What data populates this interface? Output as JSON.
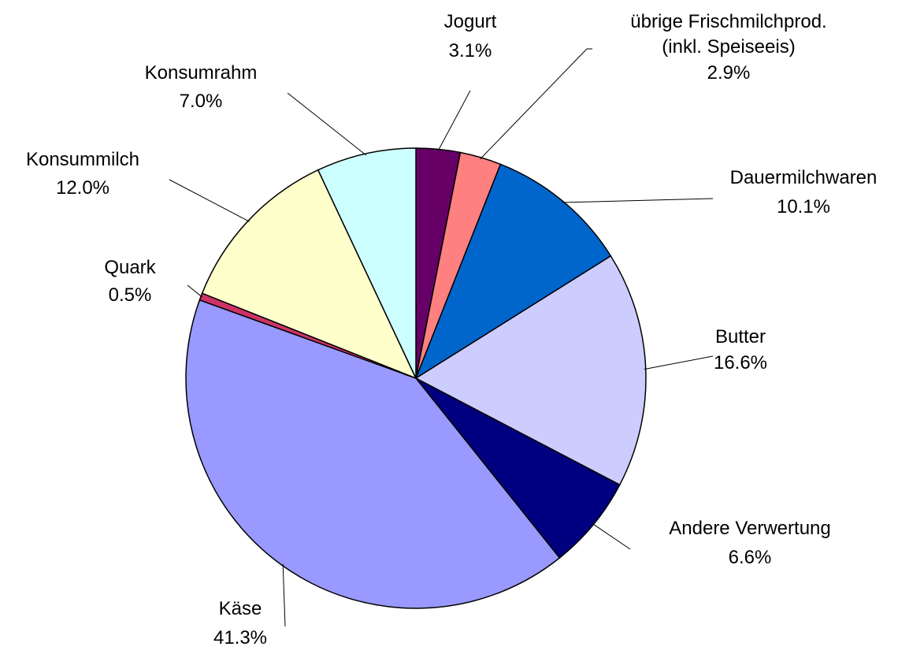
{
  "chart_data": {
    "type": "pie",
    "categories": [
      "Jogurt",
      "übrige Frischmilchprod. (inkl. Speiseeis)",
      "Dauermilchwaren",
      "Butter",
      "Andere Verwertung",
      "Käse",
      "Quark",
      "Konsummilch",
      "Konsumrahm"
    ],
    "values": [
      3.1,
      2.9,
      10.1,
      16.6,
      6.6,
      41.3,
      0.5,
      12.0,
      7.0
    ],
    "value_labels": [
      "3.1%",
      "2.9%",
      "10.1%",
      "16.6%",
      "6.6%",
      "41.3%",
      "0.5%",
      "12.0%",
      "7.0%"
    ],
    "colors": [
      "#660066",
      "#ff8080",
      "#0066cc",
      "#ccccff",
      "#000080",
      "#9999ff",
      "#cc3366",
      "#ffffcc",
      "#ccffff"
    ]
  }
}
